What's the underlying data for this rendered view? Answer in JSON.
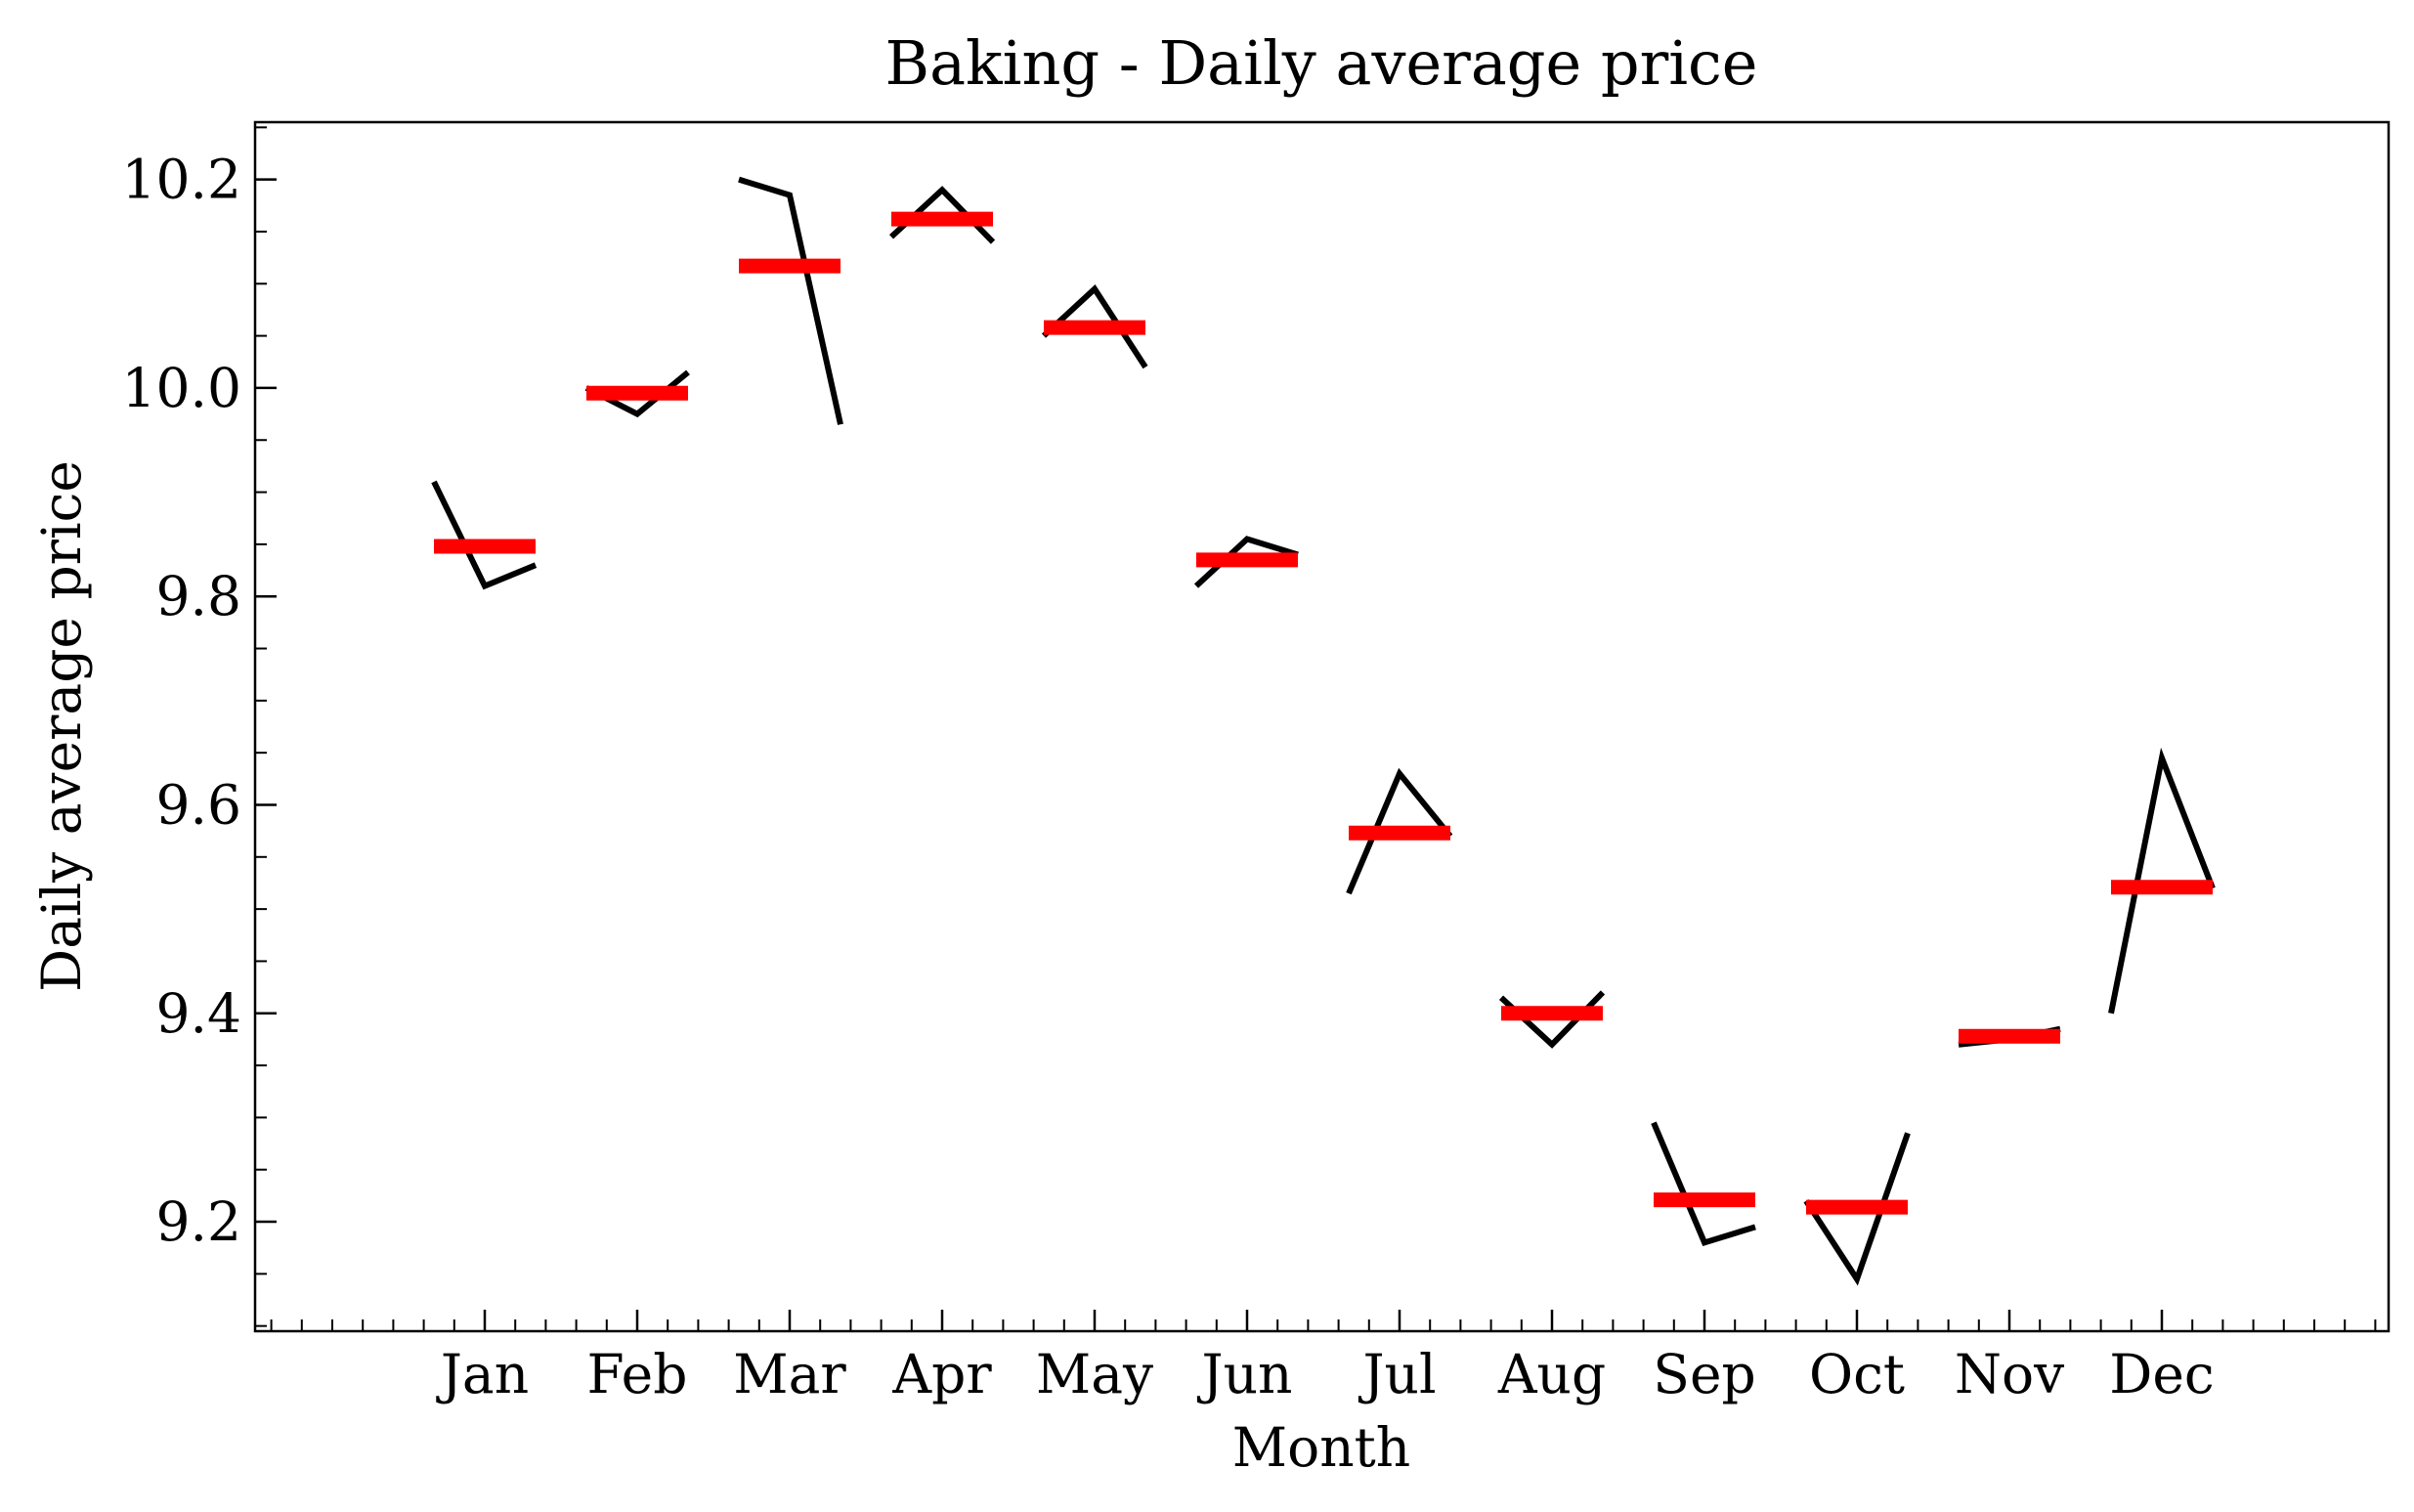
{
  "chart_data": {
    "type": "line",
    "title": "Baking - Daily average price",
    "xlabel": "Month",
    "ylabel": "Daily average price",
    "categories": [
      "Jan",
      "Feb",
      "Mar",
      "Apr",
      "May",
      "Jun",
      "Jul",
      "Aug",
      "Sep",
      "Oct",
      "Nov",
      "Dec"
    ],
    "yticks": [
      "9.2",
      "9.4",
      "9.6",
      "9.8",
      "10.0",
      "10.2"
    ],
    "ylim": [
      9.095,
      10.255
    ],
    "grid": false,
    "legend": "none",
    "series": [
      {
        "values": [
          [
            9.91,
            9.81,
            9.83
          ],
          [
            10.0,
            9.975,
            10.015
          ],
          [
            10.2,
            10.185,
            9.965
          ],
          [
            10.145,
            10.19,
            10.14
          ],
          [
            10.05,
            10.095,
            10.02
          ],
          [
            9.81,
            9.855,
            9.84
          ],
          [
            9.515,
            9.63,
            9.57
          ],
          [
            9.415,
            9.37,
            9.42
          ],
          [
            9.295,
            9.18,
            9.195
          ],
          [
            9.22,
            9.145,
            9.285
          ],
          [
            9.37,
            9.375,
            9.385
          ],
          [
            9.4,
            9.645,
            9.52
          ]
        ],
        "color": "#000000"
      },
      {
        "values": [
          9.848,
          9.995,
          10.117,
          10.162,
          10.058,
          9.835,
          9.573,
          9.4,
          9.221,
          9.214,
          9.378,
          9.521
        ],
        "color": "#ff0000"
      }
    ]
  }
}
